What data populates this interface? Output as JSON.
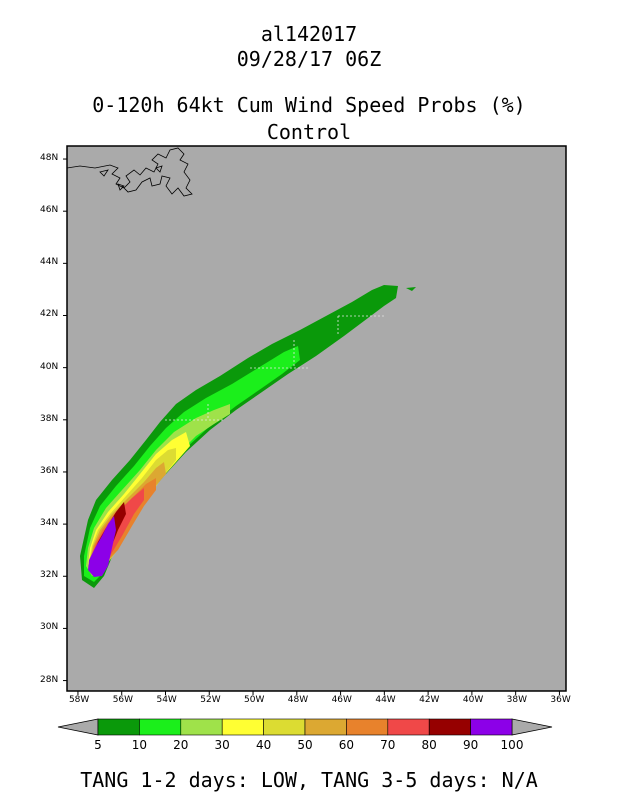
{
  "header": {
    "storm_id": "al142017",
    "datetime": "09/28/17 06Z",
    "product": "0-120h 64kt Cum Wind Speed Probs (%)",
    "run": "Control"
  },
  "map": {
    "lat_labels": [
      "48N",
      "46N",
      "44N",
      "42N",
      "40N",
      "38N",
      "36N",
      "34N",
      "32N",
      "30N",
      "28N"
    ],
    "lon_labels": [
      "58W",
      "56W",
      "54W",
      "52W",
      "50W",
      "48W",
      "46W",
      "44W",
      "42W",
      "40W",
      "38W",
      "36W"
    ],
    "lat_range": [
      27.6,
      48.5
    ],
    "lon_range": [
      -58.5,
      -35.7
    ],
    "background_color": "#aaaaaa"
  },
  "colorbar": {
    "labels": [
      "5",
      "10",
      "20",
      "30",
      "40",
      "50",
      "60",
      "70",
      "80",
      "90",
      "100"
    ],
    "colors": [
      "#0a990a",
      "#1bef1b",
      "#9fe24a",
      "#ffff33",
      "#dcdc32",
      "#dca832",
      "#e8822c",
      "#f04848",
      "#960000",
      "#8c00e8"
    ]
  },
  "footer": "TANG 1-2 days:  LOW,   TANG 3-5 days:  N/A"
}
